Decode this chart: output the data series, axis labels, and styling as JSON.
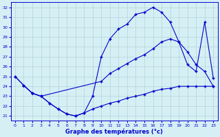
{
  "xlabel": "Graphe des températures (°c)",
  "background_color": "#d6eff5",
  "grid_color": "#b0d4d8",
  "line_color": "#0000cc",
  "x_ticks": [
    0,
    1,
    2,
    3,
    4,
    5,
    6,
    7,
    8,
    9,
    10,
    11,
    12,
    13,
    14,
    15,
    16,
    17,
    18,
    19,
    20,
    21,
    22,
    23
  ],
  "ylim": [
    21,
    32
  ],
  "y_ticks": [
    21,
    22,
    23,
    24,
    25,
    26,
    27,
    28,
    29,
    30,
    31,
    32
  ],
  "series1_x": [
    0,
    1,
    2,
    3,
    4,
    5,
    6,
    7,
    8,
    9,
    10,
    11,
    12,
    13,
    14,
    15,
    16,
    17,
    18,
    19,
    20,
    21,
    22,
    23
  ],
  "series1_y": [
    25.0,
    24.1,
    23.3,
    23.0,
    22.3,
    21.7,
    21.2,
    21.0,
    21.3,
    21.7,
    22.0,
    22.3,
    22.5,
    22.8,
    23.0,
    23.2,
    23.5,
    23.7,
    23.8,
    24.0,
    24.0,
    24.0,
    24.0,
    24.0
  ],
  "series2_x": [
    0,
    1,
    2,
    3,
    4,
    5,
    6,
    7,
    8,
    9,
    10,
    11,
    12,
    13,
    14,
    15,
    16,
    17,
    18,
    19,
    20,
    21,
    22,
    23
  ],
  "series2_y": [
    25.0,
    24.1,
    23.3,
    23.0,
    22.3,
    21.7,
    21.2,
    21.0,
    21.3,
    23.0,
    27.0,
    28.8,
    29.8,
    30.3,
    31.3,
    31.5,
    32.0,
    31.5,
    30.5,
    28.5,
    26.2,
    25.5,
    30.5,
    24.8
  ],
  "series3_x": [
    1,
    2,
    3,
    10,
    11,
    12,
    13,
    14,
    15,
    16,
    17,
    18,
    19,
    20,
    21,
    22,
    23
  ],
  "series3_y": [
    24.1,
    23.3,
    23.0,
    24.5,
    25.3,
    25.8,
    26.3,
    26.8,
    27.2,
    27.8,
    28.5,
    28.8,
    28.5,
    27.5,
    26.2,
    25.5,
    24.0
  ]
}
